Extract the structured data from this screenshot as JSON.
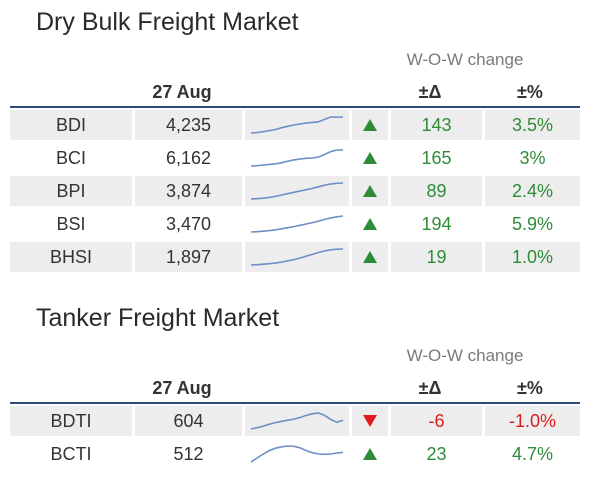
{
  "dry": {
    "title": "Dry Bulk Freight Market",
    "wow_label": "W-O-W change",
    "date_header": "27 Aug",
    "delta_header": "±Δ",
    "pct_header": "±%",
    "rows": [
      {
        "name": "BDI",
        "value": "4,235",
        "direction": "up",
        "delta": "143",
        "pct": "3.5%",
        "spark": [
          0,
          0.03,
          0.08,
          0.15,
          0.22,
          0.33,
          0.42,
          0.5,
          0.57,
          0.62,
          0.66,
          0.7,
          0.85,
          1,
          0.99,
          1
        ]
      },
      {
        "name": "BCI",
        "value": "6,162",
        "direction": "up",
        "delta": "165",
        "pct": "3%",
        "spark": [
          0,
          0.02,
          0.06,
          0.1,
          0.14,
          0.2,
          0.3,
          0.38,
          0.44,
          0.48,
          0.5,
          0.56,
          0.72,
          0.9,
          1,
          1
        ]
      },
      {
        "name": "BPI",
        "value": "3,874",
        "direction": "up",
        "delta": "89",
        "pct": "2.4%",
        "spark": [
          0,
          0.02,
          0.05,
          0.1,
          0.16,
          0.25,
          0.33,
          0.42,
          0.5,
          0.58,
          0.66,
          0.76,
          0.86,
          0.94,
          0.98,
          1
        ]
      },
      {
        "name": "BSI",
        "value": "3,470",
        "direction": "up",
        "delta": "194",
        "pct": "5.9%",
        "spark": [
          0,
          0.02,
          0.05,
          0.09,
          0.14,
          0.2,
          0.27,
          0.34,
          0.42,
          0.5,
          0.58,
          0.68,
          0.78,
          0.88,
          0.95,
          1
        ]
      },
      {
        "name": "BHSI",
        "value": "1,897",
        "direction": "up",
        "delta": "19",
        "pct": "1.0%",
        "spark": [
          0,
          0.02,
          0.05,
          0.08,
          0.12,
          0.18,
          0.26,
          0.34,
          0.44,
          0.55,
          0.66,
          0.78,
          0.88,
          0.95,
          0.99,
          1
        ]
      }
    ]
  },
  "tanker": {
    "title": "Tanker Freight Market",
    "wow_label": "W-O-W change",
    "date_header": "27 Aug",
    "delta_header": "±Δ",
    "pct_header": "±%",
    "rows": [
      {
        "name": "BDTI",
        "value": "604",
        "direction": "down",
        "delta": "-6",
        "pct": "-1.0%",
        "spark": [
          0,
          0.08,
          0.18,
          0.3,
          0.4,
          0.48,
          0.55,
          0.62,
          0.72,
          0.85,
          0.95,
          1,
          0.85,
          0.6,
          0.42,
          0.55
        ]
      },
      {
        "name": "BCTI",
        "value": "512",
        "direction": "up",
        "delta": "23",
        "pct": "4.7%",
        "spark": [
          0,
          0.25,
          0.5,
          0.72,
          0.86,
          0.95,
          1,
          0.98,
          0.88,
          0.72,
          0.58,
          0.5,
          0.48,
          0.5,
          0.56,
          0.6
        ]
      }
    ]
  },
  "colors": {
    "up": "#2e8b36",
    "down": "#e01b1b",
    "spark": "#6f8fc6",
    "rule": "#2f4a78",
    "shade": "#ededed"
  }
}
